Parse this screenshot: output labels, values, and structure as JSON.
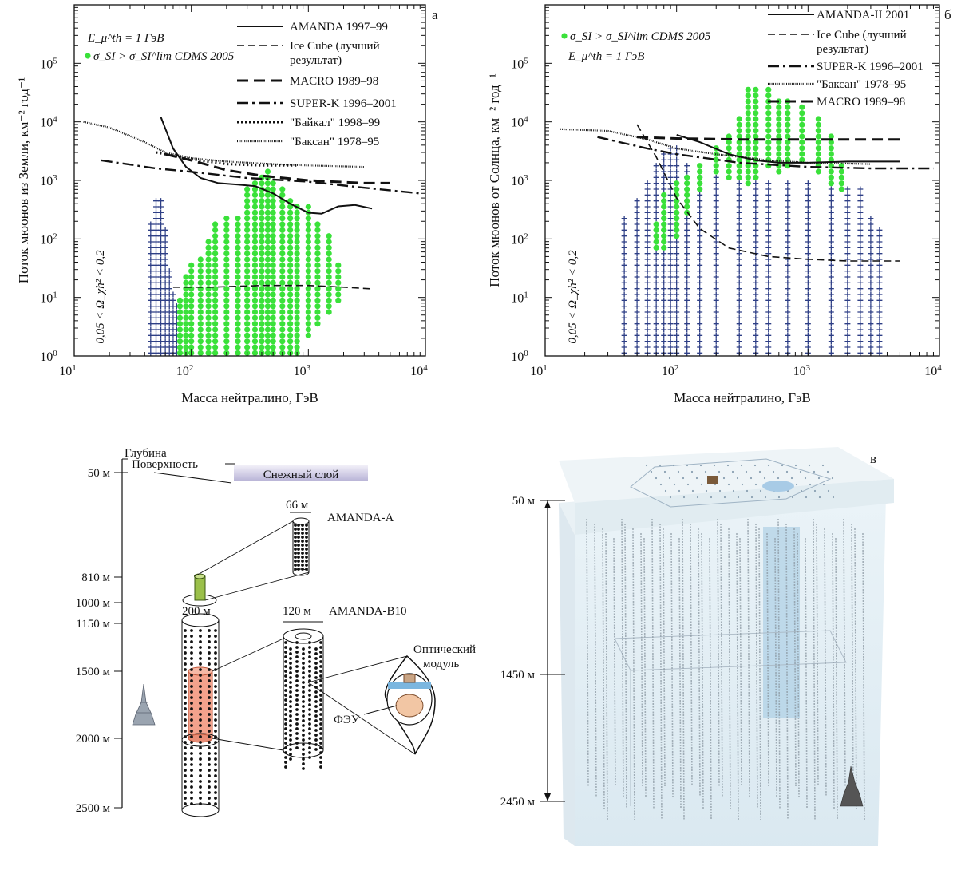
{
  "panel_letters": [
    "а",
    "б",
    "в"
  ],
  "chart_data": [
    {
      "type": "line",
      "panel": "а",
      "xlabel": "Масса нейтралино, ГэВ",
      "ylabel": "Поток мюонов из Земли, км⁻² год⁻¹",
      "xscale": "log",
      "yscale": "log",
      "xlim": [
        10,
        10000
      ],
      "ylim": [
        1,
        1000000
      ],
      "xticks": [
        {
          "value": 10,
          "label": "10¹"
        },
        {
          "value": 100,
          "label": "10²"
        },
        {
          "value": 1000,
          "label": "10³"
        },
        {
          "value": 10000,
          "label": "10⁴"
        }
      ],
      "yticks": [
        {
          "value": 1,
          "label": "10⁰"
        },
        {
          "value": 10,
          "label": "10¹"
        },
        {
          "value": 100,
          "label": "10²"
        },
        {
          "value": 1000,
          "label": "10³"
        },
        {
          "value": 10000,
          "label": "10⁴"
        },
        {
          "value": 100000,
          "label": "10⁵"
        }
      ],
      "threshold_label": "E_μ^th = 1 ГэВ",
      "scatter_legend": "σ_SI > σ_SI^lim CDMS 2005",
      "region_label": "0,05 < Ω_χh² < 0,2",
      "series": [
        {
          "name": "AMANDA 1997–99",
          "style": "solid",
          "points": [
            [
              55,
              12000
            ],
            [
              70,
              3500
            ],
            [
              90,
              1700
            ],
            [
              120,
              1100
            ],
            [
              170,
              900
            ],
            [
              250,
              850
            ],
            [
              350,
              800
            ],
            [
              500,
              600
            ],
            [
              700,
              400
            ],
            [
              1000,
              280
            ],
            [
              1300,
              270
            ],
            [
              1800,
              360
            ],
            [
              2500,
              380
            ],
            [
              3500,
              330
            ]
          ]
        },
        {
          "name": "Ice Cube (лучший результат)",
          "style": "dashed",
          "points": [
            [
              70,
              15
            ],
            [
              150,
              15
            ],
            [
              400,
              16
            ],
            [
              1000,
              16
            ],
            [
              2000,
              15
            ],
            [
              3500,
              14
            ]
          ]
        },
        {
          "name": "MACRO 1989–98",
          "style": "bold-dashed",
          "points": [
            [
              60,
              2800
            ],
            [
              100,
              2200
            ],
            [
              200,
              1500
            ],
            [
              400,
              1200
            ],
            [
              1000,
              1000
            ],
            [
              3000,
              900
            ],
            [
              5000,
              900
            ]
          ]
        },
        {
          "name": "SUPER-K 1996–2001",
          "style": "dash-dot",
          "points": [
            [
              17,
              2200
            ],
            [
              50,
              1600
            ],
            [
              100,
              1400
            ],
            [
              300,
              1100
            ],
            [
              1000,
              950
            ],
            [
              3000,
              750
            ],
            [
              9000,
              600
            ]
          ]
        },
        {
          "name": "\"Байкал\" 1998–99",
          "style": "bold-dotted",
          "points": [
            [
              50,
              3000
            ],
            [
              100,
              2300
            ],
            [
              200,
              1900
            ],
            [
              400,
              1800
            ],
            [
              800,
              1800
            ]
          ]
        },
        {
          "name": "\"Баксан\" 1978–95",
          "style": "fine-dotted",
          "points": [
            [
              12,
              10000
            ],
            [
              20,
              8000
            ],
            [
              40,
              4500
            ],
            [
              60,
              3000
            ],
            [
              100,
              2400
            ],
            [
              200,
              2100
            ],
            [
              500,
              1900
            ],
            [
              1000,
              1800
            ],
            [
              3000,
              1700
            ]
          ]
        }
      ],
      "crosses": [
        [
          45,
          0,
          2.3
        ],
        [
          50,
          0,
          2.7
        ],
        [
          55,
          0,
          2.7
        ],
        [
          60,
          0,
          2.2
        ],
        [
          65,
          0,
          1.5
        ],
        [
          70,
          0,
          1.1
        ],
        [
          75,
          0,
          0.9
        ]
      ],
      "dots": [
        [
          80,
          0,
          1.0
        ],
        [
          90,
          0,
          1.4
        ],
        [
          100,
          0,
          1.6
        ],
        [
          120,
          0,
          1.7
        ],
        [
          140,
          0,
          2.0
        ],
        [
          160,
          0,
          2.3
        ],
        [
          200,
          0,
          2.4
        ],
        [
          250,
          0,
          2.4
        ],
        [
          300,
          0,
          2.9
        ],
        [
          350,
          0,
          3.0
        ],
        [
          400,
          0,
          3.1
        ],
        [
          450,
          0,
          3.2
        ],
        [
          500,
          0,
          3.0
        ],
        [
          600,
          0,
          2.9
        ],
        [
          700,
          0,
          2.7
        ],
        [
          800,
          0,
          2.6
        ],
        [
          1000,
          0.3,
          2.6
        ],
        [
          1200,
          0.5,
          2.3
        ],
        [
          1500,
          0.7,
          2.1
        ],
        [
          1800,
          0.9,
          1.6
        ]
      ]
    },
    {
      "type": "line",
      "panel": "б",
      "xlabel": "Масса нейтралино, ГэВ",
      "ylabel": "Поток мюонов от Солнца, км⁻² год⁻¹",
      "xscale": "log",
      "yscale": "log",
      "xlim": [
        10,
        10000
      ],
      "ylim": [
        1,
        1000000
      ],
      "xticks": [
        {
          "value": 10,
          "label": "10¹"
        },
        {
          "value": 100,
          "label": "10²"
        },
        {
          "value": 1000,
          "label": "10³"
        },
        {
          "value": 10000,
          "label": "10⁴"
        }
      ],
      "yticks": [
        {
          "value": 1,
          "label": "10⁰"
        },
        {
          "value": 10,
          "label": "10¹"
        },
        {
          "value": 100,
          "label": "10²"
        },
        {
          "value": 1000,
          "label": "10³"
        },
        {
          "value": 10000,
          "label": "10⁴"
        },
        {
          "value": 100000,
          "label": "10⁵"
        }
      ],
      "threshold_label": "E_μ^th = 1 ГэВ",
      "scatter_legend": "σ_SI > σ_SI^lim CDMS 2005",
      "region_label": "0,05 < Ω_χh² < 0,2",
      "series": [
        {
          "name": "AMANDA-II 2001",
          "style": "solid",
          "points": [
            [
              100,
              6000
            ],
            [
              150,
              4500
            ],
            [
              250,
              2800
            ],
            [
              400,
              2200
            ],
            [
              600,
              2000
            ],
            [
              1000,
              2000
            ],
            [
              2000,
              2100
            ],
            [
              5000,
              2100
            ]
          ]
        },
        {
          "name": "Ice Cube (лучший результат)",
          "style": "dashed",
          "points": [
            [
              50,
              9000
            ],
            [
              70,
              2500
            ],
            [
              100,
              500
            ],
            [
              150,
              150
            ],
            [
              250,
              70
            ],
            [
              500,
              50
            ],
            [
              1000,
              45
            ],
            [
              2000,
              42
            ],
            [
              5000,
              42
            ]
          ]
        },
        {
          "name": "SUPER-K 1996–2001",
          "style": "dash-dot",
          "points": [
            [
              25,
              5500
            ],
            [
              60,
              3500
            ],
            [
              100,
              2800
            ],
            [
              300,
              2000
            ],
            [
              1000,
              1700
            ],
            [
              3000,
              1600
            ],
            [
              9000,
              1600
            ]
          ]
        },
        {
          "name": "\"Баксан\" 1978–95",
          "style": "fine-dotted",
          "points": [
            [
              13,
              7500
            ],
            [
              30,
              7000
            ],
            [
              60,
              5000
            ],
            [
              100,
              3500
            ],
            [
              200,
              2800
            ],
            [
              500,
              2200
            ],
            [
              1000,
              2000
            ],
            [
              3000,
              1900
            ]
          ]
        },
        {
          "name": "MACRO 1989–98",
          "style": "bold-dashed",
          "points": [
            [
              50,
              5500
            ],
            [
              100,
              5200
            ],
            [
              300,
              5000
            ],
            [
              1000,
              5000
            ],
            [
              5000,
              5000
            ]
          ]
        }
      ],
      "crosses": [
        [
          40,
          0,
          2.4
        ],
        [
          50,
          0,
          2.7
        ],
        [
          60,
          0,
          3.0
        ],
        [
          70,
          0,
          3.3
        ],
        [
          80,
          0,
          3.5
        ],
        [
          90,
          0,
          3.6
        ],
        [
          100,
          0,
          3.6
        ],
        [
          120,
          0,
          3.3
        ],
        [
          150,
          0,
          3.2
        ],
        [
          200,
          0,
          3.2
        ],
        [
          300,
          0,
          3.1
        ],
        [
          400,
          0,
          3.1
        ],
        [
          500,
          0,
          3.0
        ],
        [
          700,
          0,
          3.0
        ],
        [
          1000,
          0,
          3.0
        ],
        [
          1500,
          0,
          3.0
        ],
        [
          2000,
          0,
          2.9
        ],
        [
          2500,
          0,
          2.9
        ],
        [
          3000,
          0,
          2.4
        ],
        [
          3500,
          0,
          2.2
        ]
      ],
      "dots": [
        [
          70,
          1.8,
          2.3
        ],
        [
          80,
          1.8,
          2.8
        ],
        [
          100,
          2.0,
          3.0
        ],
        [
          120,
          2.4,
          3.1
        ],
        [
          150,
          2.8,
          3.3
        ],
        [
          200,
          3.1,
          3.6
        ],
        [
          250,
          3.0,
          3.8
        ],
        [
          300,
          3.0,
          4.1
        ],
        [
          350,
          2.9,
          4.6
        ],
        [
          400,
          3.0,
          4.6
        ],
        [
          500,
          3.2,
          4.6
        ],
        [
          600,
          3.1,
          4.4
        ],
        [
          700,
          3.2,
          4.4
        ],
        [
          900,
          3.3,
          4.3
        ],
        [
          1200,
          3.1,
          4.1
        ],
        [
          1500,
          2.9,
          3.8
        ],
        [
          1800,
          2.8,
          3.3
        ]
      ]
    }
  ],
  "diagram": {
    "depth_title": "Глубина",
    "surface_label": "Поверхность",
    "snow_label": "Снежный слой",
    "depths": [
      "50 м",
      "810 м",
      "1000 м",
      "1150 м",
      "1500 м",
      "2000 м",
      "2500 м"
    ],
    "amanda_a": "AMANDA-A",
    "amanda_b10": "AMANDA-B10",
    "dim_66": "66 м",
    "dim_200": "200 м",
    "dim_120": "120 м",
    "optical_module": "Оптический модуль",
    "pmt": "ФЭУ"
  },
  "icecube": {
    "depths": [
      "50 м",
      "1450 м",
      "2450 м"
    ]
  }
}
